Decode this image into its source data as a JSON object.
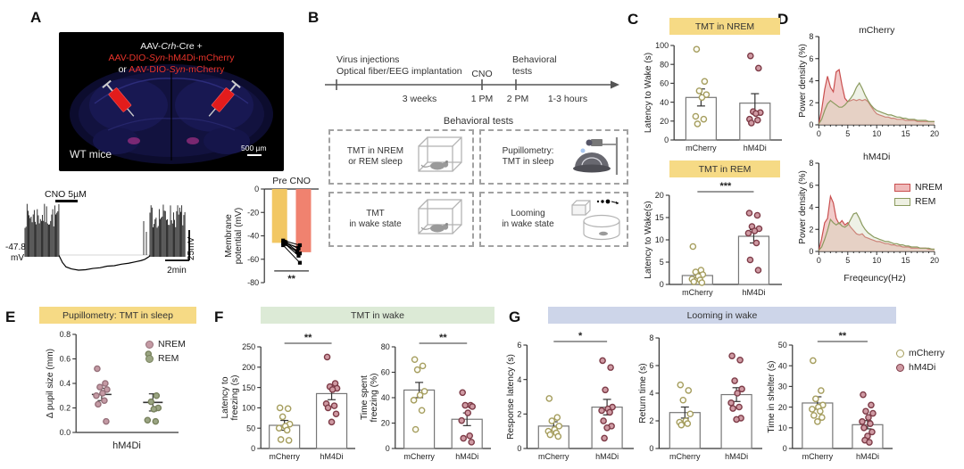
{
  "figure": {
    "panels": {
      "a": "A",
      "b": "B",
      "c": "C",
      "d": "D",
      "e": "E",
      "f": "F",
      "g": "G"
    }
  },
  "panel_a": {
    "brain": {
      "l1a": "AAV-",
      "l1b": "Crh",
      "l1c": "-Cre +",
      "l2a": "AAV-DIO-",
      "l2b": "Syn",
      "l2c": "-hM4Di-mCherry",
      "l3a": "or ",
      "l3b": "AAV-DIO-",
      "l3c": "Syn",
      "l3d": "-mCherry",
      "mice": "WT mice",
      "scale": "500 µm"
    },
    "trace": {
      "cno": "CNO 5µM",
      "baseline1": "-47.8",
      "baseline2": "mV",
      "time_scale": "2min",
      "volt_scale": "25mV"
    }
  },
  "panel_b": {
    "timeline": {
      "l1": "Virus injections",
      "l2": "Optical fiber/EEG implantation",
      "cno": "CNO",
      "bt1": "Behavioral",
      "bt2": "tests",
      "weeks": "3 weeks",
      "t1": "1 PM",
      "t2": "2 PM",
      "dur": "1-3 hours"
    },
    "tests_title": "Behavioral tests",
    "boxes": [
      {
        "l1": "TMT in NREM",
        "l2": "or REM sleep",
        "icon": "cage"
      },
      {
        "l1": "Pupillometry:",
        "l2": "TMT in sleep",
        "icon": "pupillometry"
      },
      {
        "l1": "TMT",
        "l2": "in wake state",
        "icon": "cage"
      },
      {
        "l1": "Looming",
        "l2": "in wake state",
        "icon": "looming"
      }
    ]
  },
  "headers": {
    "c1": "TMT in NREM",
    "c2": "TMT in REM",
    "e": "Pupillometry: TMT in sleep",
    "f": "TMT in wake",
    "g": "Looming in wake"
  },
  "labels": {
    "d_xlabel": "Freqeuncy(Hz)",
    "e_xlabel": "hM4Di"
  },
  "legends": {
    "d": [
      {
        "label": "NREM",
        "swatch": "nrem_rect"
      },
      {
        "label": "REM",
        "swatch": "rem_rect"
      }
    ],
    "e": [
      {
        "label": "NREM",
        "swatch": "nrem_pt"
      },
      {
        "label": "REM",
        "swatch": "rem_pt"
      }
    ],
    "g": [
      {
        "label": "mCherry",
        "swatch": "mcherry"
      },
      {
        "label": "hM4Di",
        "swatch": "hm4di"
      }
    ]
  },
  "colors": {
    "header_yellow": "#f6da85",
    "header_green": "#dcead6",
    "header_blue": "#cdd5e9"
  },
  "styles": {
    "mcherry": {
      "stroke": "#a59d5e",
      "fill": "#fdfdf6"
    },
    "hm4di": {
      "stroke": "#7d3b47",
      "fill": "#cf9aa3"
    },
    "nrem_pt": {
      "stroke": "#96707a",
      "fill": "#c49aa4"
    },
    "rem_pt": {
      "stroke": "#77815c",
      "fill": "#9ba583"
    },
    "nrem_rect": {
      "stroke": "#c94f4f",
      "fill": "#efb9b9"
    },
    "rem_rect": {
      "stroke": "#8a9a5e",
      "fill": "#eef0e2"
    }
  },
  "chart_data": {
    "a_membrane": {
      "type": "paired",
      "title": "Pre CNO",
      "categories": [
        "Pre",
        "CNO"
      ],
      "ylabel": [
        "Membrane",
        "potential (mV)"
      ],
      "ylim": [
        -80,
        0
      ],
      "yticks": [
        0,
        -20,
        -40,
        -60,
        -80
      ],
      "bars": [
        {
          "color": "#f2c763",
          "value": -46
        },
        {
          "color": "#f0826f",
          "value": -54
        }
      ],
      "pairs": [
        [
          -44,
          -48
        ],
        [
          -45,
          -51
        ],
        [
          -45.5,
          -53
        ],
        [
          -46,
          -55
        ],
        [
          -46.5,
          -57
        ],
        [
          -47,
          -54
        ],
        [
          -48,
          -63
        ],
        [
          -46,
          -50
        ]
      ],
      "sig": "**"
    },
    "c_nrem": {
      "type": "scatter-bar",
      "ylabel": [
        "Latency to Wake (s)"
      ],
      "ylim": [
        0,
        100
      ],
      "yticks": [
        0,
        20,
        40,
        60,
        80,
        100
      ],
      "categories": [
        "mCherry",
        "hM4Di"
      ],
      "sig": null,
      "groups": [
        {
          "style": "mcherry",
          "mean": 45,
          "sem": 9,
          "points": [
            96,
            62,
            52,
            48,
            45,
            25,
            22,
            17
          ]
        },
        {
          "style": "hm4di",
          "mean": 39,
          "sem": 10,
          "points": [
            89,
            76,
            30,
            29,
            28,
            22,
            21,
            18
          ]
        }
      ]
    },
    "c_rem": {
      "type": "scatter-bar",
      "ylabel": [
        "Latency to Wake(s)"
      ],
      "ylim": [
        0,
        20
      ],
      "yticks": [
        0,
        5,
        10,
        15,
        20
      ],
      "categories": [
        "mCherry",
        "hM4Di"
      ],
      "sig": "***",
      "groups": [
        {
          "style": "mcherry",
          "mean": 2,
          "sem": 0.5,
          "points": [
            8.5,
            3.2,
            2.8,
            2.2,
            1.8,
            1.2,
            1.0,
            0.6,
            0.4
          ]
        },
        {
          "style": "hm4di",
          "mean": 10.8,
          "sem": 1.5,
          "points": [
            16,
            15.5,
            13,
            12.5,
            12,
            11.5,
            9.3,
            5.5,
            3.2
          ]
        }
      ]
    },
    "d_mcherry": {
      "type": "density",
      "title": "mCherry",
      "ylabel": [
        "Power density (%)"
      ],
      "ylim": [
        0,
        8
      ],
      "yticks": [
        0,
        2,
        4,
        6,
        8
      ],
      "xlim": [
        0,
        20
      ],
      "xticks": [
        0,
        5,
        10,
        15,
        20
      ],
      "series": [
        {
          "name": "NREM",
          "line": "#c94f4f",
          "fill": "rgba(232,160,158,0.55)",
          "values": [
            0.1,
            1.4,
            3.2,
            4.4,
            3.4,
            3.0,
            4.8,
            5.0,
            3.6,
            2.4,
            2.1,
            2.2,
            2.3,
            2.2,
            2.3,
            2.2,
            2.3,
            2.1,
            1.7,
            1.3,
            1.0,
            0.9,
            0.8,
            0.7,
            0.7,
            0.6,
            0.6,
            0.5,
            0.5,
            0.5,
            0.4,
            0.4,
            0.4,
            0.4,
            0.3,
            0.3,
            0.3,
            0.3,
            0.3,
            0.3,
            0.3
          ]
        },
        {
          "name": "REM",
          "line": "#8a9a5e",
          "fill": "rgba(210,218,188,0.38)",
          "values": [
            0.1,
            0.5,
            1.3,
            1.9,
            2.2,
            2.0,
            1.8,
            1.6,
            1.6,
            1.8,
            2.1,
            2.4,
            2.8,
            3.4,
            3.8,
            3.3,
            2.7,
            2.2,
            1.8,
            1.5,
            1.3,
            1.2,
            1.1,
            1.0,
            0.9,
            0.9,
            0.8,
            0.7,
            0.7,
            0.6,
            0.6,
            0.5,
            0.5,
            0.5,
            0.4,
            0.4,
            0.4,
            0.4,
            0.3,
            0.3,
            0.3
          ]
        }
      ]
    },
    "d_hm4di": {
      "type": "density",
      "title": "hM4Di",
      "ylabel": [
        "Power density (%)"
      ],
      "ylim": [
        0,
        8
      ],
      "yticks": [
        0,
        2,
        4,
        6,
        8
      ],
      "xlim": [
        0,
        20
      ],
      "xticks": [
        0,
        5,
        10,
        15,
        20
      ],
      "series": [
        {
          "name": "NREM",
          "line": "#c94f4f",
          "fill": "rgba(232,160,158,0.55)",
          "values": [
            0.1,
            1.2,
            2.6,
            3.0,
            5.0,
            4.4,
            3.0,
            2.5,
            2.8,
            2.4,
            2.6,
            2.2,
            1.9,
            1.6,
            1.5,
            1.6,
            1.3,
            1.2,
            1.1,
            1.0,
            0.9,
            0.9,
            0.8,
            0.7,
            0.7,
            0.6,
            0.6,
            0.5,
            0.5,
            0.4,
            0.4,
            0.4,
            0.3,
            0.3,
            0.3,
            0.3,
            0.3,
            0.3,
            0.2,
            0.2,
            0.2
          ]
        },
        {
          "name": "REM",
          "line": "#8a9a5e",
          "fill": "rgba(210,218,188,0.38)",
          "values": [
            0.1,
            0.4,
            1.1,
            1.9,
            2.9,
            2.6,
            2.4,
            2.6,
            2.3,
            2.2,
            2.4,
            2.9,
            3.4,
            3.5,
            3.0,
            2.4,
            2.0,
            1.7,
            1.5,
            1.3,
            1.2,
            1.1,
            1.0,
            0.9,
            0.9,
            0.8,
            0.7,
            0.7,
            0.6,
            0.6,
            0.5,
            0.5,
            0.4,
            0.4,
            0.4,
            0.3,
            0.3,
            0.3,
            0.3,
            0.2,
            0.2
          ]
        }
      ]
    },
    "e_pupil": {
      "type": "scatter",
      "bar": false,
      "dec": 1,
      "ylabel": [
        "Δ pupil size (mm)"
      ],
      "ylim": [
        0,
        0.8
      ],
      "yticks": [
        0,
        0.2,
        0.4,
        0.6,
        0.8
      ],
      "sig": null,
      "groups": [
        {
          "style": "nrem_pt",
          "mean": 0.31,
          "sem": 0.05,
          "points": [
            0.52,
            0.4,
            0.37,
            0.35,
            0.32,
            0.3,
            0.26,
            0.23,
            0.09
          ]
        },
        {
          "style": "rem_pt",
          "mean": 0.245,
          "sem": 0.07,
          "points": [
            0.64,
            0.3,
            0.25,
            0.2,
            0.19,
            0.1,
            0.09
          ]
        }
      ]
    },
    "f_latency": {
      "type": "scatter-bar",
      "ylabel": [
        "Latency to",
        "freezing (s)"
      ],
      "ylim": [
        0,
        250
      ],
      "yticks": [
        0,
        50,
        100,
        150,
        200,
        250
      ],
      "categories": [
        "mCherry",
        "hM4Di"
      ],
      "sig": "**",
      "groups": [
        {
          "style": "mcherry",
          "mean": 57,
          "sem": 12,
          "points": [
            100,
            98,
            78,
            60,
            55,
            50,
            45,
            22,
            20
          ]
        },
        {
          "style": "hm4di",
          "mean": 135,
          "sem": 15,
          "points": [
            225,
            160,
            152,
            148,
            145,
            110,
            105,
            100,
            85,
            65
          ]
        }
      ]
    },
    "f_time": {
      "type": "scatter-bar",
      "ylabel": [
        "Time spent",
        "freezing (%)"
      ],
      "ylim": [
        0,
        80
      ],
      "yticks": [
        0,
        20,
        40,
        60,
        80
      ],
      "categories": [
        "mCherry",
        "hM4Di"
      ],
      "sig": "**",
      "groups": [
        {
          "style": "mcherry",
          "mean": 46,
          "sem": 6,
          "points": [
            70,
            65,
            62,
            45,
            42,
            38,
            30,
            15
          ]
        },
        {
          "style": "hm4di",
          "mean": 23,
          "sem": 5,
          "points": [
            44,
            34,
            34,
            33,
            28,
            22,
            10,
            8,
            5
          ]
        }
      ]
    },
    "g_resp": {
      "type": "scatter-bar",
      "ylabel": [
        "Response latency (s)"
      ],
      "ylim": [
        0,
        6
      ],
      "yticks": [
        0,
        2,
        4,
        6
      ],
      "categories": [
        "mCherry",
        "hM4Di"
      ],
      "sig": "*",
      "groups": [
        {
          "style": "mcherry",
          "mean": 1.3,
          "sem": 0.25,
          "points": [
            2.9,
            1.8,
            1.6,
            1.3,
            1.1,
            1.0,
            0.9,
            0.8,
            0.7
          ]
        },
        {
          "style": "hm4di",
          "mean": 2.4,
          "sem": 0.45,
          "points": [
            5.1,
            4.7,
            3.4,
            2.4,
            2.3,
            2.2,
            2.1,
            1.6,
            1.3,
            1.2,
            0.6
          ]
        }
      ]
    },
    "g_return": {
      "type": "scatter-bar",
      "ylabel": [
        "Return time (s)"
      ],
      "ylim": [
        0,
        8
      ],
      "yticks": [
        0,
        2,
        4,
        6,
        8
      ],
      "categories": [
        "mCherry",
        "hM4Di"
      ],
      "sig": null,
      "groups": [
        {
          "style": "mcherry",
          "mean": 2.6,
          "sem": 0.4,
          "points": [
            4.6,
            4.2,
            3.5,
            2.5,
            2.0,
            1.9,
            1.8,
            1.7
          ]
        },
        {
          "style": "hm4di",
          "mean": 3.9,
          "sem": 0.5,
          "points": [
            6.7,
            6.4,
            4.9,
            4.3,
            4.0,
            3.3,
            3.0,
            2.9,
            2.2,
            2.1
          ]
        }
      ]
    },
    "g_shelter": {
      "type": "scatter-bar",
      "ylabel": [
        "Time in shelter (s)"
      ],
      "ylim": [
        0,
        50
      ],
      "yticks": [
        0,
        10,
        20,
        30,
        40,
        50
      ],
      "categories": [
        "mCherry",
        "hM4Di"
      ],
      "sig": "**",
      "groups": [
        {
          "style": "mcherry",
          "mean": 22,
          "sem": 3,
          "points": [
            42.5,
            28,
            24,
            21,
            20,
            19,
            18,
            16,
            15,
            13
          ]
        },
        {
          "style": "hm4di",
          "mean": 11.5,
          "sem": 2,
          "points": [
            26,
            21,
            18,
            17,
            15,
            13,
            12,
            10,
            8,
            6,
            4,
            3
          ]
        }
      ]
    }
  }
}
